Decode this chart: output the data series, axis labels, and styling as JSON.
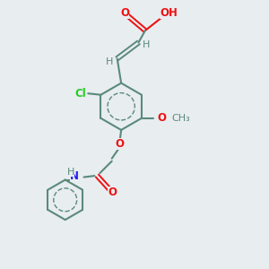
{
  "bg_color": "#e8edf0",
  "bond_color": "#5a8a7a",
  "atom_colors": {
    "O": "#ee1111",
    "N": "#2222ee",
    "Cl": "#22cc22",
    "C": "#5a8a7a",
    "H": "#5a8a7a"
  },
  "figsize": [
    3.0,
    3.0
  ],
  "dpi": 100
}
